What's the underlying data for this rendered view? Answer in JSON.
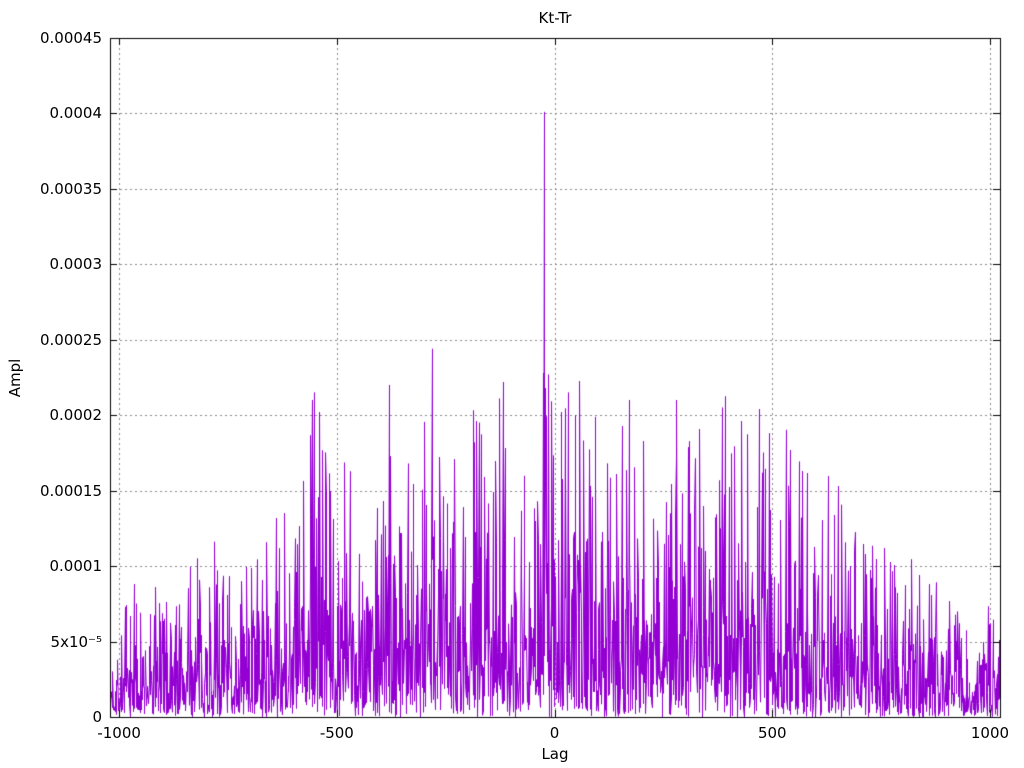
{
  "page": {
    "background": "#ffffff"
  },
  "chart_data": {
    "type": "line",
    "style": "dense impulse-like noise trace (gnuplot)",
    "title": "Kt-Tr",
    "xlabel": "Lag",
    "ylabel": "Ampl",
    "x_range": [
      -1021,
      1023
    ],
    "y_range": [
      0,
      0.00045
    ],
    "grid": true,
    "legend": "none",
    "background": "#ffffff",
    "line_color": "#9400d3",
    "grid_color": "#8c8c8c",
    "border_color": "#000000",
    "xticks": [
      {
        "value": -1000,
        "label": "-1000"
      },
      {
        "value": -500,
        "label": "-500"
      },
      {
        "value": 0,
        "label": "0"
      },
      {
        "value": 500,
        "label": "500"
      },
      {
        "value": 1000,
        "label": "1000"
      }
    ],
    "yticks": [
      {
        "value": 0.0,
        "label": "0"
      },
      {
        "value": 5e-05,
        "label": "5x10⁻⁵"
      },
      {
        "value": 0.0001,
        "label": "0.0001"
      },
      {
        "value": 0.00015,
        "label": "0.00015"
      },
      {
        "value": 0.0002,
        "label": "0.0002"
      },
      {
        "value": 0.00025,
        "label": "0.00025"
      },
      {
        "value": 0.0003,
        "label": "0.0003"
      },
      {
        "value": 0.00035,
        "label": "0.00035"
      },
      {
        "value": 0.0004,
        "label": "0.0004"
      },
      {
        "value": 0.00045,
        "label": "0.00045"
      }
    ],
    "main_peak": {
      "x": -24,
      "y": 0.000401
    },
    "notable_peaks": [
      [
        -965,
        8.8e-05
      ],
      [
        -916,
        8.6e-05
      ],
      [
        -820,
        0.000105
      ],
      [
        -774,
        9.7e-05
      ],
      [
        -620,
        0.000135
      ],
      [
        -552,
        0.000215
      ],
      [
        -539,
        0.000202
      ],
      [
        -380,
        0.00022
      ],
      [
        -281,
        0.000244
      ],
      [
        -118,
        0.000222
      ],
      [
        -26,
        0.000228
      ],
      [
        -21,
        0.000218
      ],
      [
        16,
        0.000202
      ],
      [
        31,
        0.000215
      ],
      [
        171,
        0.00021
      ],
      [
        281,
        0.00021
      ],
      [
        385,
        0.000205
      ],
      [
        430,
        0.000196
      ],
      [
        570,
        0.000163
      ],
      [
        628,
        0.000155
      ],
      [
        860,
        8.8e-05
      ]
    ],
    "envelope_max": [
      [
        -1021,
        6.2e-05
      ],
      [
        -950,
        7.5e-05
      ],
      [
        -900,
        8e-05
      ],
      [
        -850,
        9.2e-05
      ],
      [
        -800,
        9.5e-05
      ],
      [
        -750,
        9.8e-05
      ],
      [
        -700,
        0.000102
      ],
      [
        -650,
        0.000108
      ],
      [
        -620,
        0.000125
      ],
      [
        -580,
        0.000148
      ],
      [
        -553,
        0.00019
      ],
      [
        -520,
        0.000152
      ],
      [
        -480,
        0.000148
      ],
      [
        -440,
        0.000158
      ],
      [
        -400,
        0.000185
      ],
      [
        -350,
        0.000172
      ],
      [
        -300,
        0.000205
      ],
      [
        -250,
        0.000185
      ],
      [
        -200,
        0.000188
      ],
      [
        -150,
        0.000182
      ],
      [
        -100,
        0.00019
      ],
      [
        -50,
        0.000192
      ],
      [
        0,
        0.000195
      ],
      [
        50,
        0.000188
      ],
      [
        100,
        0.000182
      ],
      [
        150,
        0.000188
      ],
      [
        200,
        0.000185
      ],
      [
        250,
        0.000188
      ],
      [
        300,
        0.000185
      ],
      [
        350,
        0.000188
      ],
      [
        400,
        0.000182
      ],
      [
        450,
        0.000175
      ],
      [
        500,
        0.000168
      ],
      [
        550,
        0.000155
      ],
      [
        600,
        0.000148
      ],
      [
        650,
        0.000128
      ],
      [
        700,
        0.000112
      ],
      [
        750,
        0.0001
      ],
      [
        800,
        9e-05
      ],
      [
        850,
        8.2e-05
      ],
      [
        900,
        7.5e-05
      ],
      [
        950,
        6.8e-05
      ],
      [
        1023,
        6.2e-05
      ]
    ],
    "noise": {
      "seed": 7,
      "step": 1,
      "mean_fraction": 0.33,
      "clip_fraction": 1.06
    }
  }
}
